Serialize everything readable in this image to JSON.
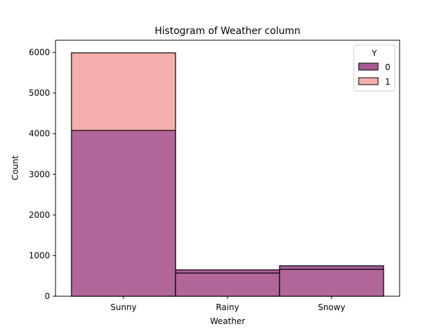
{
  "chart_data": {
    "type": "bar",
    "title": "Histogram of Weather column",
    "xlabel": "Weather",
    "ylabel": "Count",
    "categories": [
      "Sunny",
      "Rainy",
      "Snowy"
    ],
    "ylim": [
      0,
      6300
    ],
    "yticks": [
      0,
      1000,
      2000,
      3000,
      4000,
      5000,
      6000
    ],
    "legend": {
      "title": "Y",
      "position": "top-right"
    },
    "series": [
      {
        "name": "0",
        "values": [
          4080,
          650,
          750
        ],
        "color": "#7b2a72"
      },
      {
        "name": "1",
        "values": [
          5990,
          570,
          660
        ],
        "color": "#f0706b"
      }
    ],
    "overlap_color": "#b3669a",
    "grid": false
  }
}
